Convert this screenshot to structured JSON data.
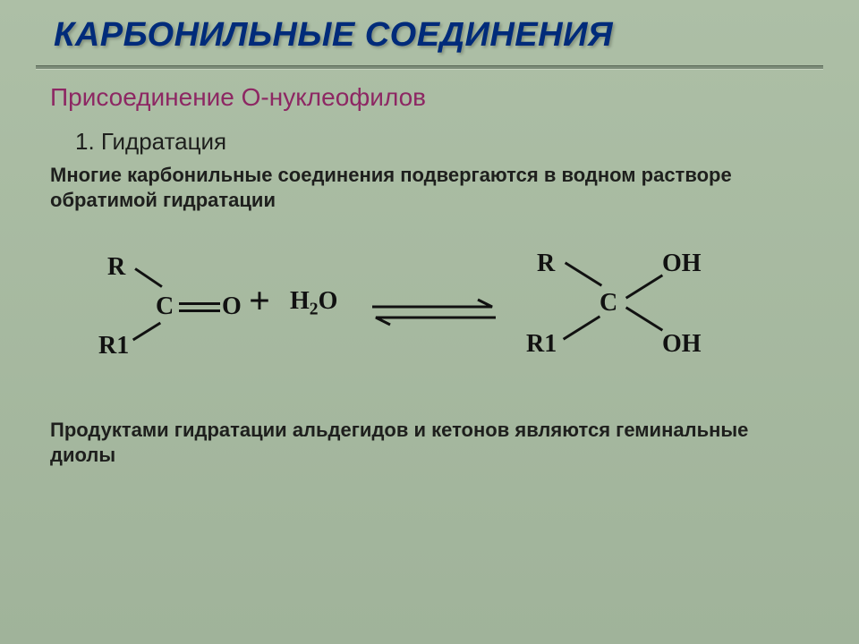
{
  "title": "КАРБОНИЛЬНЫЕ СОЕДИНЕНИЯ",
  "subtitle": "Присоединение О-нуклеофилов",
  "section_heading": "1. Гидратация",
  "intro_text": "Многие карбонильные соединения подвергаются в водном растворе обратимой гидратации",
  "outro_text": "Продуктами гидратации альдегидов и кетонов являются геминальные диолы",
  "reaction": {
    "reactant": {
      "r1": "R",
      "r2": "R1",
      "c": "C",
      "o": "O"
    },
    "plus": "+",
    "water_html": "H<span class=\"sub\">2</span>O",
    "product": {
      "r1": "R",
      "r2": "R1",
      "c": "C",
      "oh1": "OH",
      "oh2": "OH"
    },
    "arrow_color": "#111111",
    "arrow_type": "equilibrium"
  },
  "colors": {
    "background_top": "#adbfa6",
    "background_bottom": "#a0b39a",
    "title": "#002b7a",
    "subtitle": "#8d2763",
    "body": "#1e1f1d",
    "rule": "#7c8c79"
  },
  "fontsizes": {
    "title": 38,
    "subtitle": 28,
    "section": 26,
    "body": 22,
    "chem": 28
  }
}
